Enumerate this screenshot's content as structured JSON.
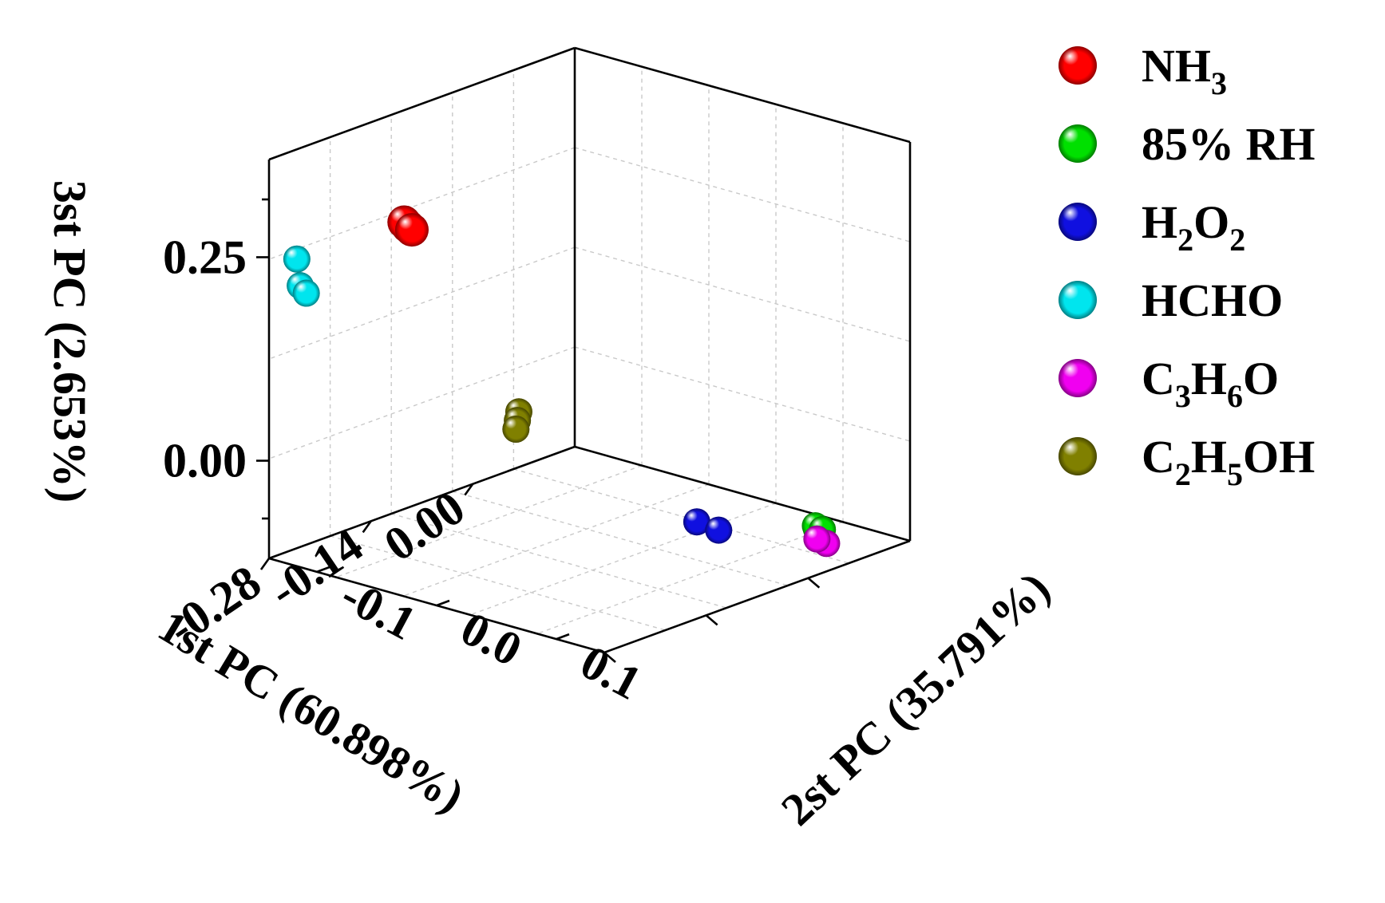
{
  "chart_data": {
    "type": "scatter",
    "projection": "3d",
    "x_axis": {
      "label": "1st PC (60.898%)",
      "ticks": [
        -0.28,
        -0.14,
        0.0
      ],
      "tick_labels": [
        "-0.28",
        "-0.14",
        "0.00"
      ],
      "range": [
        -0.28,
        0.14
      ]
    },
    "y_axis": {
      "label": "2st PC (35.791%)",
      "ticks": [
        -0.1,
        0.0,
        0.1
      ],
      "tick_labels": [
        "-0.1",
        "0.0",
        "0.1"
      ],
      "range": [
        -0.14,
        0.14
      ]
    },
    "z_axis": {
      "label": "3st PC (2.653%)",
      "ticks": [
        0.0,
        0.25
      ],
      "tick_labels": [
        "0.00",
        "0.25"
      ],
      "range": [
        -0.12,
        0.37
      ]
    },
    "grid": true,
    "legend_position": "right",
    "series": [
      {
        "name": "NH3",
        "name_parts": [
          [
            "NH",
            ""
          ],
          [
            "3",
            "sub"
          ]
        ],
        "color": "#ff0000",
        "points": [
          [
            -0.27,
            -0.03,
            0.33
          ],
          [
            -0.272,
            -0.032,
            0.335
          ],
          [
            -0.268,
            -0.028,
            0.326
          ]
        ]
      },
      {
        "name": "85% RH",
        "name_parts": [
          [
            "85% RH",
            ""
          ]
        ],
        "color": "#00e000",
        "points": [
          [
            0.11,
            0.08,
            -0.12
          ],
          [
            0.112,
            0.078,
            -0.118
          ],
          [
            0.115,
            0.082,
            -0.122
          ]
        ]
      },
      {
        "name": "H2O2",
        "name_parts": [
          [
            "H",
            ""
          ],
          [
            "2",
            "sub"
          ],
          [
            "O",
            ""
          ],
          [
            "2",
            "sub"
          ]
        ],
        "color": "#1010e0",
        "points": [
          [
            -0.12,
            0.12,
            -0.02
          ],
          [
            -0.09,
            0.12,
            -0.04
          ]
        ]
      },
      {
        "name": "HCHO",
        "name_parts": [
          [
            "HCHO",
            ""
          ]
        ],
        "color": "#00e5ee",
        "points": [
          [
            -0.25,
            -0.135,
            0.24
          ],
          [
            -0.27,
            -0.12,
            0.22
          ],
          [
            -0.265,
            -0.118,
            0.21
          ]
        ]
      },
      {
        "name": "C3H6O",
        "name_parts": [
          [
            "C",
            ""
          ],
          [
            "3",
            "sub"
          ],
          [
            "H",
            ""
          ],
          [
            "6",
            "sub"
          ],
          [
            "O",
            ""
          ]
        ],
        "color": "#f000f0",
        "points": [
          [
            0.05,
            0.125,
            -0.1
          ],
          [
            0.045,
            0.12,
            -0.095
          ]
        ]
      },
      {
        "name": "C2H5OH",
        "name_parts": [
          [
            "C",
            ""
          ],
          [
            "2",
            "sub"
          ],
          [
            "H",
            ""
          ],
          [
            "5",
            "sub"
          ],
          [
            "OH",
            ""
          ]
        ],
        "color": "#808000",
        "points": [
          [
            -0.2,
            0.02,
            0.1
          ],
          [
            -0.202,
            0.02,
            0.09
          ],
          [
            -0.204,
            0.02,
            0.08
          ]
        ]
      }
    ]
  }
}
